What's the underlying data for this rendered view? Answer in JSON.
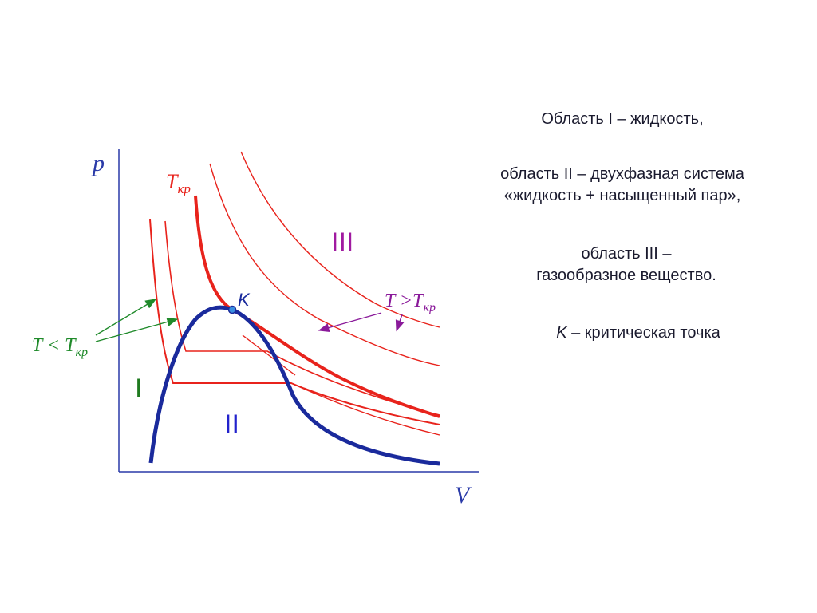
{
  "axes": {
    "y_label": "p",
    "x_label": "V"
  },
  "region_labels": {
    "I": "I",
    "II": "II",
    "III": "III"
  },
  "curve_labels": {
    "critical_isotherm": {
      "T": "T",
      "sub": "кр"
    },
    "below_critical": {
      "T": "T < T",
      "sub": "кр"
    },
    "above_critical": {
      "T": "T >T",
      "sub": "кр"
    },
    "critical_point": "K"
  },
  "colors": {
    "isotherm": "#e8231c",
    "saturation_curve": "#1a2a9c",
    "axis": "#2a3aa8",
    "arrow_below": "#1f8a2a",
    "arrow_above": "#8a1a9a",
    "region_I": "#1f7a1f",
    "region_II": "#2222cc",
    "region_III": "#a01aa0",
    "text": "#1a1a2e"
  },
  "notes": {
    "line1": "Область I – жидкость,",
    "line2a": "область II – двухфазная система",
    "line2b": "«жидкость + насыщенный пар»,",
    "line3a": "область III –",
    "line3b": "газообразное вещество.",
    "line4_symbol": "K",
    "line4_text": " – критическая точка"
  }
}
